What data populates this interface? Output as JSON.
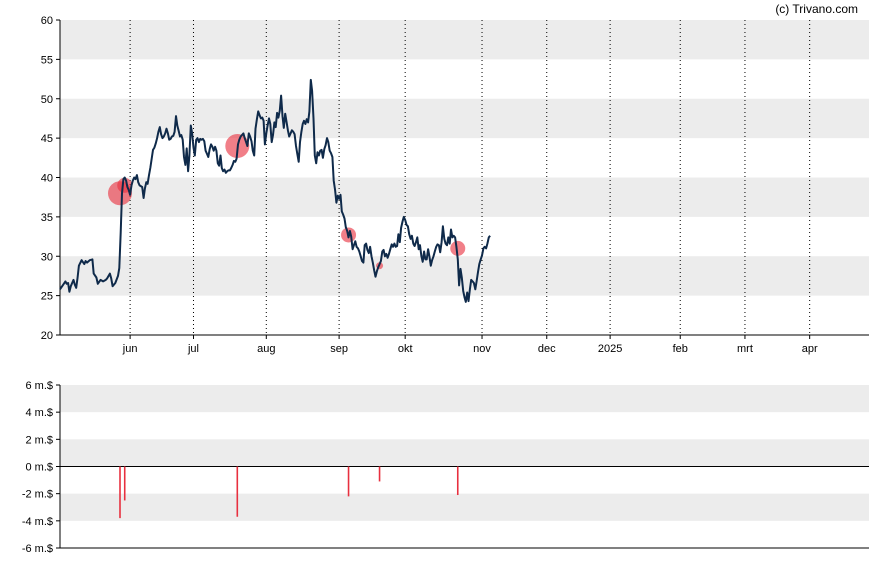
{
  "credit": "(c) Trivano.com",
  "colors": {
    "price_line": "#0f2a4a",
    "marker": "#e8303f",
    "band": "#ececec",
    "axis": "#000000"
  },
  "chart_data": [
    {
      "type": "line",
      "name": "price",
      "ylim": [
        20,
        60
      ],
      "y_ticks": [
        "20",
        "25",
        "30",
        "35",
        "40",
        "45",
        "50",
        "55",
        "60"
      ],
      "x_ticks": [
        {
          "label": "jun",
          "x": 52
        },
        {
          "label": "jul",
          "x": 99
        },
        {
          "label": "aug",
          "x": 153
        },
        {
          "label": "sep",
          "x": 207
        },
        {
          "label": "okt",
          "x": 256
        },
        {
          "label": "nov",
          "x": 313
        },
        {
          "label": "dec",
          "x": 361
        },
        {
          "label": "2025",
          "x": 408
        },
        {
          "label": "feb",
          "x": 460
        },
        {
          "label": "mrt",
          "x": 508
        },
        {
          "label": "apr",
          "x": 556
        }
      ],
      "x_range": [
        0,
        600
      ],
      "grid": "vertical dotted at month ticks, alternating horizontal bands",
      "points": [
        [
          0,
          25.8
        ],
        [
          2,
          26.3
        ],
        [
          4,
          26.8
        ],
        [
          5,
          26.5
        ],
        [
          6,
          26.6
        ],
        [
          7,
          25.5
        ],
        [
          8,
          26.2
        ],
        [
          10,
          27
        ],
        [
          11,
          26.4
        ],
        [
          12,
          26
        ],
        [
          13,
          27.2
        ],
        [
          14,
          28.8
        ],
        [
          16,
          29.5
        ],
        [
          18,
          29
        ],
        [
          19,
          29.4
        ],
        [
          20,
          29.2
        ],
        [
          22,
          29.5
        ],
        [
          24,
          29.6
        ],
        [
          25,
          27.8
        ],
        [
          27,
          27.3
        ],
        [
          28,
          26.5
        ],
        [
          30,
          27
        ],
        [
          32,
          26.8
        ],
        [
          34,
          27
        ],
        [
          35,
          27.2
        ],
        [
          37,
          27.8
        ],
        [
          38,
          27.2
        ],
        [
          39,
          26.2
        ],
        [
          41,
          26.6
        ],
        [
          43,
          27.5
        ],
        [
          44,
          28.5
        ],
        [
          45,
          33
        ],
        [
          46,
          38
        ],
        [
          47,
          39.8
        ],
        [
          48,
          40
        ],
        [
          49,
          39.6
        ],
        [
          50,
          38.8
        ],
        [
          51,
          38.4
        ],
        [
          52,
          37.8
        ],
        [
          53,
          39
        ],
        [
          54,
          39.6
        ],
        [
          55,
          40
        ],
        [
          56,
          39.8
        ],
        [
          57,
          40.3
        ],
        [
          58,
          39.4
        ],
        [
          59,
          39
        ],
        [
          61,
          38.8
        ],
        [
          62,
          37.4
        ],
        [
          63,
          38.6
        ],
        [
          64,
          39.4
        ],
        [
          65,
          39.2
        ],
        [
          66,
          40.3
        ],
        [
          67,
          41.2
        ],
        [
          68,
          42.4
        ],
        [
          69,
          43.5
        ],
        [
          70,
          43.8
        ],
        [
          71,
          44.3
        ],
        [
          72,
          45
        ],
        [
          73,
          45.8
        ],
        [
          74,
          46.4
        ],
        [
          75,
          45.5
        ],
        [
          76,
          45
        ],
        [
          77,
          45.2
        ],
        [
          78,
          45.6
        ],
        [
          79,
          46.2
        ],
        [
          80,
          45.6
        ],
        [
          81,
          44.8
        ],
        [
          82,
          44.9
        ],
        [
          83,
          45.2
        ],
        [
          84,
          45.3
        ],
        [
          85,
          45.8
        ],
        [
          86,
          47.8
        ],
        [
          87,
          46.6
        ],
        [
          88,
          45.9
        ],
        [
          89,
          45.2
        ],
        [
          90,
          45.4
        ],
        [
          91,
          44.8
        ],
        [
          92,
          42.6
        ],
        [
          93,
          41.6
        ],
        [
          94,
          43.7
        ],
        [
          95,
          40.8
        ],
        [
          96,
          42.8
        ],
        [
          97,
          46.6
        ],
        [
          98,
          45.6
        ],
        [
          99,
          43.8
        ],
        [
          100,
          42.8
        ],
        [
          101,
          44.8
        ],
        [
          102,
          45
        ],
        [
          103,
          44.5
        ],
        [
          104,
          44.9
        ],
        [
          105,
          44.8
        ],
        [
          106,
          44.9
        ],
        [
          107,
          44.6
        ],
        [
          108,
          43.4
        ],
        [
          109,
          43
        ],
        [
          110,
          42.6
        ],
        [
          111,
          43.6
        ],
        [
          112,
          44.2
        ],
        [
          113,
          43.9
        ],
        [
          114,
          43.4
        ],
        [
          115,
          43.9
        ],
        [
          116,
          43.4
        ],
        [
          117,
          41.8
        ],
        [
          118,
          41.5
        ],
        [
          119,
          42.8
        ],
        [
          120,
          41.2
        ],
        [
          121,
          40.8
        ],
        [
          122,
          41
        ],
        [
          123,
          40.6
        ],
        [
          124,
          40.8
        ],
        [
          125,
          40.9
        ],
        [
          126,
          40.9
        ],
        [
          127,
          41.2
        ],
        [
          128,
          41.6
        ],
        [
          129,
          42.1
        ],
        [
          130,
          42
        ],
        [
          131,
          42.4
        ],
        [
          132,
          44.2
        ],
        [
          133,
          44.8
        ],
        [
          134,
          45.2
        ],
        [
          135,
          45.4
        ],
        [
          136,
          45.6
        ],
        [
          137,
          45
        ],
        [
          138,
          44.5
        ],
        [
          139,
          44
        ],
        [
          140,
          45.6
        ],
        [
          141,
          45.2
        ],
        [
          142,
          44.6
        ],
        [
          143,
          43.4
        ],
        [
          144,
          42.8
        ],
        [
          145,
          46.2
        ],
        [
          146,
          47.4
        ],
        [
          147,
          48.4
        ],
        [
          148,
          47.9
        ],
        [
          149,
          47.5
        ],
        [
          150,
          47.6
        ],
        [
          151,
          47.2
        ],
        [
          152,
          44.2
        ],
        [
          153,
          45.6
        ],
        [
          154,
          46.6
        ],
        [
          155,
          47.5
        ],
        [
          156,
          46.8
        ],
        [
          157,
          44.5
        ],
        [
          158,
          45.4
        ],
        [
          159,
          47
        ],
        [
          160,
          46.4
        ],
        [
          161,
          48.2
        ],
        [
          162,
          47.6
        ],
        [
          163,
          48.5
        ],
        [
          164,
          50.4
        ],
        [
          165,
          47.8
        ],
        [
          166,
          46.3
        ],
        [
          167,
          48.1
        ],
        [
          168,
          47.1
        ],
        [
          169,
          46
        ],
        [
          170,
          45.2
        ],
        [
          171,
          45.6
        ],
        [
          172,
          46
        ],
        [
          173,
          45.8
        ],
        [
          174,
          45.5
        ],
        [
          175,
          44
        ],
        [
          176,
          43
        ],
        [
          177,
          42
        ],
        [
          178,
          44.5
        ],
        [
          179,
          45.8
        ],
        [
          180,
          46.8
        ],
        [
          181,
          47.2
        ],
        [
          182,
          46.8
        ],
        [
          183,
          47.4
        ],
        [
          184,
          47
        ],
        [
          185,
          48.4
        ],
        [
          186,
          52.4
        ],
        [
          187,
          51
        ],
        [
          188,
          47.5
        ],
        [
          189,
          42.8
        ],
        [
          190,
          41.8
        ],
        [
          191,
          43.2
        ],
        [
          192,
          42.8
        ],
        [
          193,
          43.4
        ],
        [
          194,
          43.5
        ],
        [
          195,
          42.5
        ],
        [
          196,
          43.6
        ],
        [
          197,
          44.1
        ],
        [
          198,
          45
        ],
        [
          199,
          44.5
        ],
        [
          200,
          43.4
        ],
        [
          201,
          43.1
        ],
        [
          202,
          42.6
        ],
        [
          203,
          39.6
        ],
        [
          204,
          38.4
        ],
        [
          205,
          36.8
        ],
        [
          206,
          37.7
        ],
        [
          207,
          37.3
        ],
        [
          208,
          37.8
        ],
        [
          209,
          35.7
        ],
        [
          210,
          35.3
        ],
        [
          211,
          34.8
        ],
        [
          212,
          33.7
        ],
        [
          213,
          33.2
        ],
        [
          214,
          32.4
        ],
        [
          215,
          33.2
        ],
        [
          216,
          32.5
        ],
        [
          217,
          30.9
        ],
        [
          218,
          31.4
        ],
        [
          219,
          31.9
        ],
        [
          220,
          31.2
        ],
        [
          221,
          31
        ],
        [
          222,
          30.6
        ],
        [
          223,
          30
        ],
        [
          224,
          29.4
        ],
        [
          225,
          29.2
        ],
        [
          226,
          31.4
        ],
        [
          227,
          31.6
        ],
        [
          228,
          30.8
        ],
        [
          229,
          30.4
        ],
        [
          230,
          31.2
        ],
        [
          231,
          30
        ],
        [
          232,
          29.2
        ],
        [
          233,
          28.2
        ],
        [
          234,
          27.4
        ],
        [
          235,
          28.1
        ],
        [
          236,
          28.6
        ],
        [
          237,
          29
        ],
        [
          238,
          29.4
        ],
        [
          239,
          30.6
        ],
        [
          240,
          30.8
        ],
        [
          241,
          30
        ],
        [
          242,
          30.3
        ],
        [
          243,
          29.8
        ],
        [
          244,
          30.3
        ],
        [
          245,
          30.9
        ],
        [
          246,
          31.5
        ],
        [
          247,
          31.2
        ],
        [
          248,
          31.6
        ],
        [
          249,
          31.2
        ],
        [
          250,
          31.3
        ],
        [
          251,
          32.8
        ],
        [
          252,
          31.8
        ],
        [
          253,
          33.6
        ],
        [
          254,
          34.4
        ],
        [
          255,
          35
        ],
        [
          256,
          34.6
        ],
        [
          257,
          34
        ],
        [
          258,
          33.8
        ],
        [
          259,
          32.8
        ],
        [
          260,
          32.2
        ],
        [
          261,
          32.6
        ],
        [
          262,
          31.6
        ],
        [
          263,
          31.3
        ],
        [
          264,
          31.8
        ],
        [
          265,
          32.4
        ],
        [
          266,
          30.9
        ],
        [
          267,
          31.4
        ],
        [
          268,
          30
        ],
        [
          269,
          29.3
        ],
        [
          270,
          30.6
        ],
        [
          271,
          29.6
        ],
        [
          272,
          29.6
        ],
        [
          273,
          30.9
        ],
        [
          274,
          30
        ],
        [
          275,
          28.8
        ],
        [
          276,
          29.5
        ],
        [
          277,
          30
        ],
        [
          278,
          30.6
        ],
        [
          279,
          31.2
        ],
        [
          280,
          31.5
        ],
        [
          281,
          31.4
        ],
        [
          282,
          30.5
        ],
        [
          283,
          31.8
        ],
        [
          284,
          33.8
        ],
        [
          285,
          32.2
        ],
        [
          286,
          31.6
        ],
        [
          287,
          31.4
        ],
        [
          288,
          32.4
        ],
        [
          289,
          31.6
        ],
        [
          290,
          33.4
        ],
        [
          291,
          32.4
        ],
        [
          292,
          32.6
        ],
        [
          293,
          32.4
        ],
        [
          294,
          31.2
        ],
        [
          295,
          29.6
        ],
        [
          296,
          26.3
        ],
        [
          297,
          28.4
        ],
        [
          298,
          27.3
        ],
        [
          299,
          25.6
        ],
        [
          300,
          24.8
        ],
        [
          301,
          24.2
        ],
        [
          302,
          25.4
        ],
        [
          303,
          24.3
        ],
        [
          304,
          25.8
        ],
        [
          305,
          27
        ],
        [
          306,
          26.8
        ],
        [
          307,
          26.6
        ],
        [
          308,
          25.8
        ],
        [
          309,
          26.8
        ],
        [
          310,
          28
        ],
        [
          311,
          29
        ],
        [
          312,
          29.6
        ],
        [
          313,
          30.1
        ],
        [
          314,
          31
        ],
        [
          315,
          31.2
        ],
        [
          316,
          31
        ],
        [
          317,
          31.6
        ],
        [
          318,
          32.4
        ],
        [
          319,
          32.6
        ]
      ],
      "markers": [
        {
          "x": 44.5,
          "y": 38,
          "size": "large"
        },
        {
          "x": 48,
          "y": 39,
          "size": "medium"
        },
        {
          "x": 131.5,
          "y": 44,
          "size": "large"
        },
        {
          "x": 214,
          "y": 32.7,
          "size": "medium"
        },
        {
          "x": 237,
          "y": 28.8,
          "size": "small"
        },
        {
          "x": 295,
          "y": 31,
          "size": "medium"
        }
      ]
    },
    {
      "type": "bar",
      "name": "volume",
      "ylim": [
        -6,
        6
      ],
      "y_ticks": [
        "-6 m.$",
        "-4 m.$",
        "-2 m.$",
        "0 m.$",
        "2 m.$",
        "4 m.$",
        "6 m.$"
      ],
      "bars": [
        {
          "x": 44.5,
          "value": -3.8
        },
        {
          "x": 48,
          "value": -2.5
        },
        {
          "x": 131.5,
          "value": -3.7
        },
        {
          "x": 214,
          "value": -2.2
        },
        {
          "x": 237,
          "value": -1.1
        },
        {
          "x": 295,
          "value": -2.1
        }
      ]
    }
  ]
}
